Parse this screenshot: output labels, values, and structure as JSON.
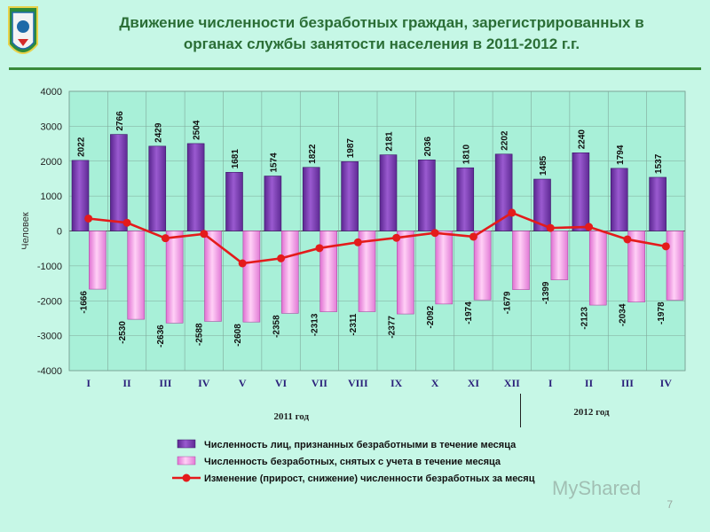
{
  "header": {
    "title_line1": "Движение численности безработных граждан, зарегистрированных в",
    "title_line2": "органах службы занятости населения в 2011-2012 г.г."
  },
  "page_number": "7",
  "watermark": "MyShared",
  "colors": {
    "background": "#c6f7e6",
    "plot_area": "#a8f0d8",
    "series_registered": "#7a3db0",
    "series_removed": "#f08fe0",
    "series_change": "#e41b1b",
    "title": "#2b6e36"
  },
  "chart_data": {
    "type": "bar",
    "ylabel": "Человек",
    "ylim": [
      -4000,
      4000
    ],
    "yticks": [
      4000,
      3000,
      2000,
      1000,
      0,
      -1000,
      -2000,
      -3000,
      -4000
    ],
    "categories": [
      "I",
      "II",
      "III",
      "IV",
      "V",
      "VI",
      "VII",
      "VIII",
      "IX",
      "X",
      "XI",
      "XII",
      "I",
      "II",
      "III",
      "IV"
    ],
    "year_groups": [
      {
        "label": "2011 год",
        "count": 12
      },
      {
        "label": "2012 год",
        "count": 4
      }
    ],
    "series": [
      {
        "name": "Численность лиц, признанных безработными в течение месяца",
        "type": "bar",
        "values": [
          2022,
          2766,
          2429,
          2504,
          1681,
          1574,
          1822,
          1987,
          2181,
          2036,
          1810,
          2202,
          1485,
          2240,
          1794,
          1537
        ]
      },
      {
        "name": "Численность безработных, снятых с учета в течение месяца",
        "type": "bar",
        "values": [
          -1666,
          -2530,
          -2636,
          -2588,
          -2608,
          -2358,
          -2313,
          -2311,
          -2377,
          -2092,
          -1974,
          -1679,
          -1399,
          -2123,
          -2034,
          -1978
        ]
      },
      {
        "name": "Изменение (прирост, снижение) численности безработных за месяц",
        "type": "line",
        "values": [
          356,
          236,
          -207,
          -84,
          -927,
          -784,
          -491,
          -324,
          -196,
          -56,
          -164,
          523,
          86,
          117,
          -240,
          -441
        ]
      }
    ],
    "grid": true,
    "legend_position": "bottom"
  }
}
